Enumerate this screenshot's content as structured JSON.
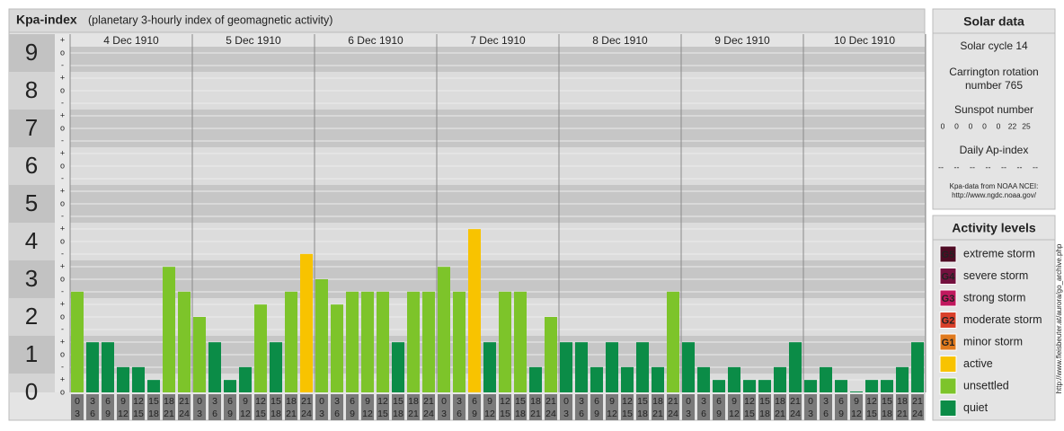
{
  "chart_data": {
    "type": "bar",
    "title": "Kpa-index",
    "subtitle": "(planetary 3-hourly index of geomagnetic activity)",
    "days": [
      "4 Dec 1910",
      "5 Dec 1910",
      "6 Dec 1910",
      "7 Dec 1910",
      "8 Dec 1910",
      "9 Dec 1910",
      "10 Dec 1910"
    ],
    "intervals": [
      [
        "0",
        "3"
      ],
      [
        "3",
        "6"
      ],
      [
        "6",
        "9"
      ],
      [
        "9",
        "12"
      ],
      [
        "12",
        "15"
      ],
      [
        "15",
        "18"
      ],
      [
        "18",
        "21"
      ],
      [
        "21",
        "24"
      ]
    ],
    "values": [
      2.67,
      1.33,
      1.33,
      0.67,
      0.67,
      0.33,
      3.33,
      2.67,
      2,
      1.33,
      0.33,
      0.67,
      2.33,
      1.33,
      2.67,
      3.67,
      3,
      2.33,
      2.67,
      2.67,
      2.67,
      1.33,
      2.67,
      2.67,
      3.33,
      2.67,
      4.33,
      1.33,
      2.67,
      2.67,
      0.67,
      2,
      1.33,
      1.33,
      0.67,
      1.33,
      0.67,
      1.33,
      0.67,
      2.67,
      1.33,
      0.67,
      0.33,
      0.67,
      0.33,
      0.33,
      0.67,
      1.33,
      0.33,
      0.67,
      0.33,
      0,
      0.33,
      0.33,
      0.67,
      1.33
    ],
    "colors": [
      "#7dc42a",
      "#0b8c47",
      "#0b8c47",
      "#0b8c47",
      "#0b8c47",
      "#0b8c47",
      "#7dc42a",
      "#7dc42a",
      "#7dc42a",
      "#0b8c47",
      "#0b8c47",
      "#0b8c47",
      "#7dc42a",
      "#0b8c47",
      "#7dc42a",
      "#f8c300",
      "#7dc42a",
      "#7dc42a",
      "#7dc42a",
      "#7dc42a",
      "#7dc42a",
      "#0b8c47",
      "#7dc42a",
      "#7dc42a",
      "#7dc42a",
      "#7dc42a",
      "#f8c300",
      "#0b8c47",
      "#7dc42a",
      "#7dc42a",
      "#0b8c47",
      "#7dc42a",
      "#0b8c47",
      "#0b8c47",
      "#0b8c47",
      "#0b8c47",
      "#0b8c47",
      "#0b8c47",
      "#0b8c47",
      "#7dc42a",
      "#0b8c47",
      "#0b8c47",
      "#0b8c47",
      "#0b8c47",
      "#0b8c47",
      "#0b8c47",
      "#0b8c47",
      "#0b8c47",
      "#0b8c47",
      "#0b8c47",
      "#0b8c47",
      "#0b8c47",
      "#0b8c47",
      "#0b8c47",
      "#0b8c47",
      "#0b8c47"
    ],
    "ylim": [
      0,
      9.5
    ],
    "yticks": [
      0,
      1,
      2,
      3,
      4,
      5,
      6,
      7,
      8,
      9
    ],
    "sublevels": [
      "-",
      "o",
      "+"
    ],
    "grid": true
  },
  "solar_data": {
    "title": "Solar data",
    "solar_cycle": "Solar cycle 14",
    "carrington": [
      "Carrington rotation",
      "number 765"
    ],
    "sunspot_title": "Sunspot number",
    "sunspot_numbers": [
      0,
      0,
      0,
      0,
      0,
      22,
      25
    ],
    "ap_title": "Daily Ap-index",
    "ap_values": [
      "--",
      "--",
      "--",
      "--",
      "--",
      "--",
      "--"
    ],
    "source": [
      "Kpa-data from NOAA NCEI:",
      "http://www.ngdc.noaa.gov/"
    ]
  },
  "activity_levels": {
    "title": "Activity levels",
    "items": [
      {
        "code": "G5",
        "label": "extreme storm",
        "color": "#4e0b24"
      },
      {
        "code": "G4",
        "label": "severe storm",
        "color": "#74113f"
      },
      {
        "code": "G3",
        "label": "strong storm",
        "color": "#c0185e"
      },
      {
        "code": "G2",
        "label": "moderate storm",
        "color": "#d9402a"
      },
      {
        "code": "G1",
        "label": "minor storm",
        "color": "#e07a1e"
      },
      {
        "label": "active",
        "color": "#f8c300"
      },
      {
        "label": "unsettled",
        "color": "#7dc42a"
      },
      {
        "label": "quiet",
        "color": "#0b8c47"
      }
    ]
  },
  "side_url": "http://www.fleisbeuter.at/aurora/go_archive.php"
}
